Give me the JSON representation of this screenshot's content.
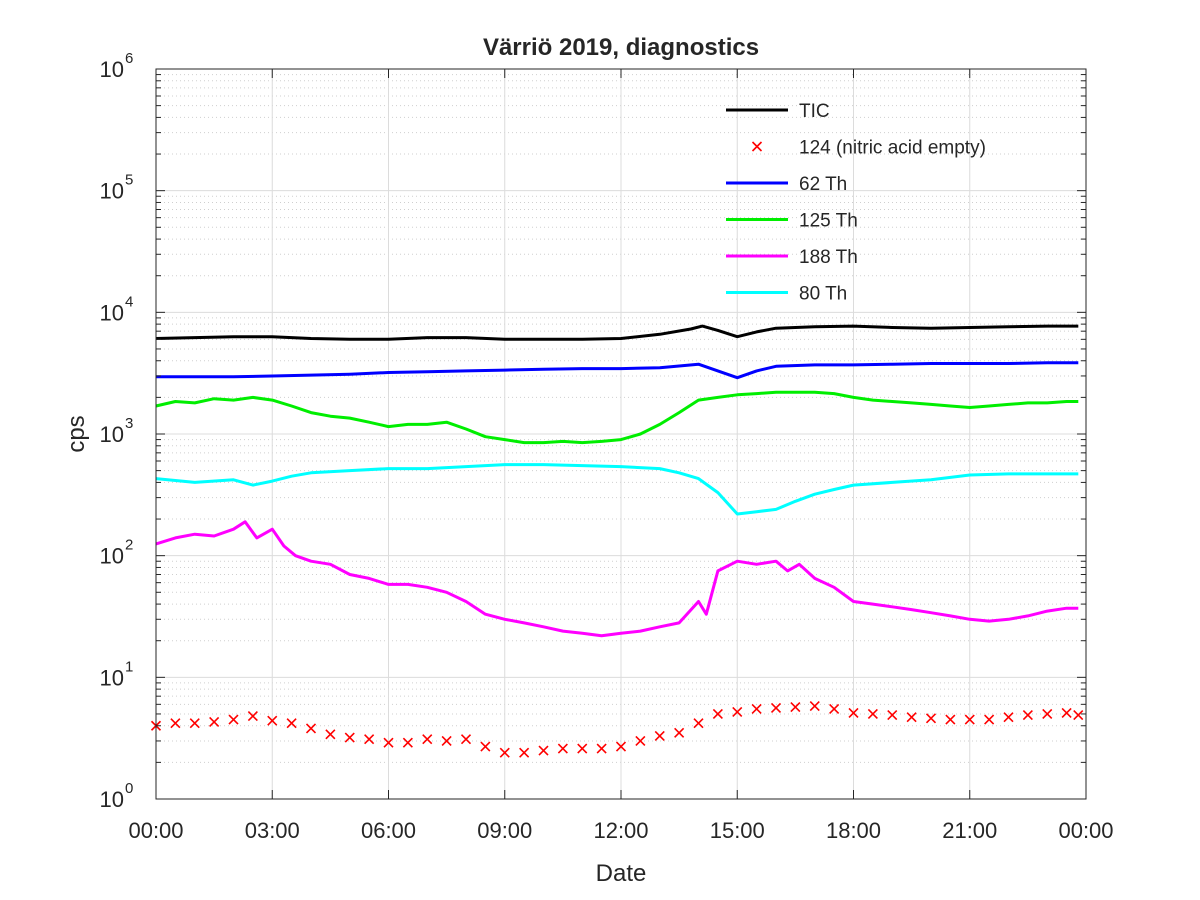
{
  "chart_data": {
    "type": "line",
    "title": "Värriö 2019, diagnostics",
    "xlabel": "Date",
    "ylabel": "cps",
    "x_unit": "hours",
    "xlim": [
      0,
      24
    ],
    "x_ticks": [
      0,
      3,
      6,
      9,
      12,
      15,
      18,
      21,
      24
    ],
    "x_tick_labels": [
      "00:00",
      "03:00",
      "06:00",
      "09:00",
      "12:00",
      "15:00",
      "18:00",
      "21:00",
      "00:00"
    ],
    "yscale": "log",
    "ylim": [
      1,
      1000000
    ],
    "y_ticks": [
      {
        "base": "10",
        "exp": "0",
        "value": 1
      },
      {
        "base": "10",
        "exp": "1",
        "value": 10
      },
      {
        "base": "10",
        "exp": "2",
        "value": 100
      },
      {
        "base": "10",
        "exp": "3",
        "value": 1000
      },
      {
        "base": "10",
        "exp": "4",
        "value": 10000
      },
      {
        "base": "10",
        "exp": "5",
        "value": 100000
      },
      {
        "base": "10",
        "exp": "6",
        "value": 1000000
      }
    ],
    "grid": true,
    "legend_position": "top-right",
    "series": [
      {
        "name": "TIC",
        "color": "#000000",
        "style": "line",
        "x": [
          0,
          1,
          2,
          3,
          4,
          5,
          6,
          7,
          8,
          9,
          10,
          11,
          12,
          13,
          13.8,
          14.1,
          14.5,
          15.0,
          15.5,
          16,
          17,
          18,
          19,
          20,
          21,
          22,
          23,
          23.8
        ],
        "y": [
          6100,
          6200,
          6300,
          6300,
          6100,
          6000,
          6000,
          6200,
          6200,
          6000,
          6000,
          6000,
          6100,
          6600,
          7300,
          7700,
          7100,
          6300,
          6900,
          7400,
          7600,
          7700,
          7500,
          7400,
          7500,
          7600,
          7700,
          7700
        ]
      },
      {
        "name": "124 (nitric acid empty)",
        "color": "#ff0000",
        "style": "marker",
        "x": [
          0,
          0.5,
          1,
          1.5,
          2,
          2.5,
          3,
          3.5,
          4,
          4.5,
          5,
          5.5,
          6,
          6.5,
          7,
          7.5,
          8,
          8.5,
          9,
          9.5,
          10,
          10.5,
          11,
          11.5,
          12,
          12.5,
          13,
          13.5,
          14,
          14.5,
          15,
          15.5,
          16,
          16.5,
          17,
          17.5,
          18,
          18.5,
          19,
          19.5,
          20,
          20.5,
          21,
          21.5,
          22,
          22.5,
          23,
          23.5,
          23.8
        ],
        "y": [
          4.0,
          4.2,
          4.2,
          4.3,
          4.5,
          4.8,
          4.4,
          4.2,
          3.8,
          3.4,
          3.2,
          3.1,
          2.9,
          2.9,
          3.1,
          3.0,
          3.1,
          2.7,
          2.4,
          2.4,
          2.5,
          2.6,
          2.6,
          2.6,
          2.7,
          3.0,
          3.3,
          3.5,
          4.2,
          5.0,
          5.2,
          5.5,
          5.6,
          5.7,
          5.8,
          5.5,
          5.1,
          5.0,
          4.9,
          4.7,
          4.6,
          4.5,
          4.5,
          4.5,
          4.7,
          4.9,
          5.0,
          5.1,
          4.9
        ]
      },
      {
        "name": "62 Th",
        "color": "#0000ff",
        "style": "line",
        "x": [
          0,
          1,
          2,
          3,
          4,
          5,
          6,
          7,
          8,
          9,
          10,
          11,
          12,
          13,
          14,
          14.5,
          15.0,
          15.5,
          16,
          17,
          18,
          19,
          20,
          21,
          22,
          23,
          23.8
        ],
        "y": [
          2950,
          2950,
          2950,
          3000,
          3050,
          3100,
          3200,
          3250,
          3300,
          3350,
          3400,
          3450,
          3450,
          3500,
          3750,
          3300,
          2900,
          3300,
          3600,
          3700,
          3700,
          3750,
          3800,
          3800,
          3800,
          3850,
          3850
        ]
      },
      {
        "name": "125 Th",
        "color": "#00ee00",
        "style": "line",
        "x": [
          0,
          0.5,
          1,
          1.5,
          2,
          2.5,
          3,
          3.5,
          4,
          4.5,
          5,
          5.5,
          6,
          6.5,
          7,
          7.5,
          8,
          8.5,
          9,
          9.5,
          10,
          10.5,
          11,
          11.5,
          12,
          12.5,
          13,
          13.5,
          14,
          14.5,
          15,
          15.5,
          16,
          16.5,
          17,
          17.5,
          18,
          18.5,
          19,
          19.5,
          20,
          20.5,
          21,
          21.5,
          22,
          22.5,
          23,
          23.5,
          23.8
        ],
        "y": [
          1700,
          1850,
          1800,
          1950,
          1900,
          2000,
          1900,
          1700,
          1500,
          1400,
          1350,
          1250,
          1150,
          1200,
          1200,
          1250,
          1100,
          950,
          900,
          850,
          850,
          870,
          850,
          870,
          900,
          1000,
          1200,
          1500,
          1900,
          2000,
          2100,
          2150,
          2200,
          2200,
          2200,
          2150,
          2000,
          1900,
          1850,
          1800,
          1750,
          1700,
          1650,
          1700,
          1750,
          1800,
          1800,
          1850,
          1850
        ]
      },
      {
        "name": "188 Th",
        "color": "#ff00ff",
        "style": "line",
        "x": [
          0,
          0.5,
          1,
          1.5,
          2,
          2.3,
          2.6,
          3,
          3.3,
          3.6,
          4,
          4.5,
          5,
          5.5,
          6,
          6.5,
          7,
          7.5,
          8,
          8.5,
          9,
          9.5,
          10,
          10.5,
          11,
          11.5,
          12,
          12.5,
          13,
          13.5,
          14,
          14.2,
          14.5,
          15,
          15.5,
          16,
          16.3,
          16.6,
          17,
          17.5,
          18,
          18.5,
          19,
          19.5,
          20,
          20.5,
          21,
          21.5,
          22,
          22.5,
          23,
          23.5,
          23.8
        ],
        "y": [
          125,
          140,
          150,
          145,
          165,
          190,
          140,
          165,
          120,
          100,
          90,
          85,
          70,
          65,
          58,
          58,
          55,
          50,
          42,
          33,
          30,
          28,
          26,
          24,
          23,
          22,
          23,
          24,
          26,
          28,
          42,
          33,
          75,
          90,
          85,
          90,
          75,
          85,
          65,
          55,
          42,
          40,
          38,
          36,
          34,
          32,
          30,
          29,
          30,
          32,
          35,
          37,
          37
        ]
      },
      {
        "name": "80 Th",
        "color": "#00ffff",
        "style": "line",
        "x": [
          0,
          1,
          2,
          2.5,
          3,
          3.5,
          4,
          5,
          6,
          7,
          8,
          9,
          10,
          11,
          12,
          13,
          13.5,
          14,
          14.5,
          15,
          15.5,
          16,
          16.5,
          17,
          17.5,
          18,
          19,
          20,
          21,
          22,
          23,
          23.8
        ],
        "y": [
          430,
          400,
          420,
          380,
          410,
          450,
          480,
          500,
          520,
          520,
          540,
          560,
          560,
          550,
          540,
          520,
          480,
          430,
          330,
          220,
          230,
          240,
          280,
          320,
          350,
          380,
          400,
          420,
          460,
          470,
          470,
          470
        ]
      }
    ]
  }
}
